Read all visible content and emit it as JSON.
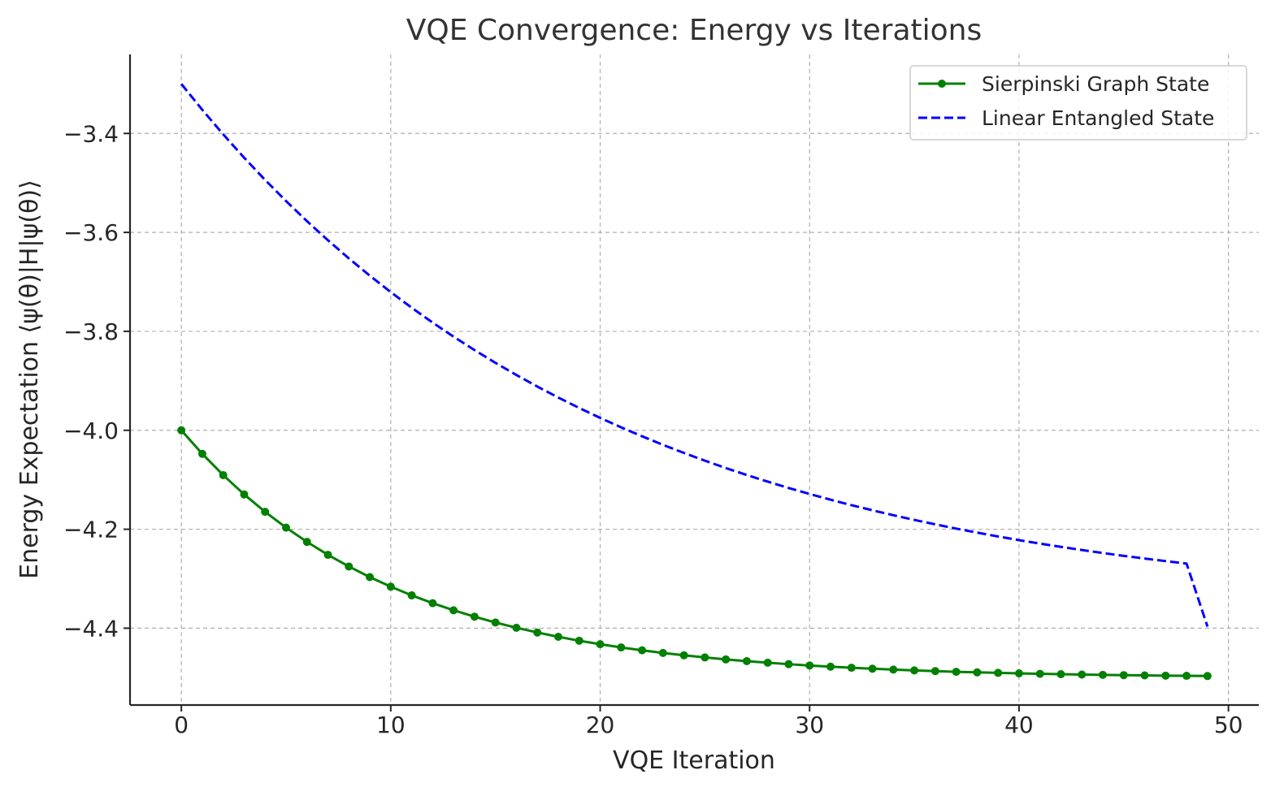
{
  "chart_data": {
    "type": "line",
    "title": "VQE Convergence: Energy vs Iterations",
    "xlabel": "VQE Iteration",
    "ylabel": "Energy Expectation ⟨ψ(θ)|H|ψ(θ)⟩",
    "xlim": [
      -2.45,
      51.45
    ],
    "ylim": [
      -4.5553,
      -3.2403
    ],
    "x_ticks": [
      0,
      10,
      20,
      30,
      40,
      50
    ],
    "y_ticks": [
      -3.4,
      -3.6,
      -3.8,
      -4.0,
      -4.2,
      -4.4
    ],
    "grid": true,
    "legend_position": "top-right",
    "x": [
      0,
      1,
      2,
      3,
      4,
      5,
      6,
      7,
      8,
      9,
      10,
      11,
      12,
      13,
      14,
      15,
      16,
      17,
      18,
      19,
      20,
      21,
      22,
      23,
      24,
      25,
      26,
      27,
      28,
      29,
      30,
      31,
      32,
      33,
      34,
      35,
      36,
      37,
      38,
      39,
      40,
      41,
      42,
      43,
      44,
      45,
      46,
      47,
      48,
      49
    ],
    "series": [
      {
        "name": "Sierpinski Graph State",
        "color": "#008000",
        "line_style": "solid",
        "marker": "circle",
        "values": [
          -4.0,
          -4.0476,
          -4.0906,
          -4.1296,
          -4.1648,
          -4.1967,
          -4.2256,
          -4.2517,
          -4.2753,
          -4.2967,
          -4.3161,
          -4.3336,
          -4.3494,
          -4.3638,
          -4.3767,
          -4.3885,
          -4.3991,
          -4.4087,
          -4.4174,
          -4.4253,
          -4.4324,
          -4.4389,
          -4.4447,
          -4.45,
          -4.4548,
          -4.4591,
          -4.4631,
          -4.4666,
          -4.4698,
          -4.4727,
          -4.4754,
          -4.4778,
          -4.4799,
          -4.4819,
          -4.4837,
          -4.4853,
          -4.4867,
          -4.4881,
          -4.4893,
          -4.4903,
          -4.4913,
          -4.4922,
          -4.493,
          -4.4937,
          -4.4943,
          -4.4949,
          -4.4954,
          -4.4959,
          -4.4963,
          -4.4967
        ]
      },
      {
        "name": "Linear Entangled State",
        "color": "#0000ff",
        "line_style": "dashed",
        "marker": "none",
        "values": [
          -3.3,
          -3.3522,
          -3.4019,
          -3.4491,
          -3.494,
          -3.5367,
          -3.5773,
          -3.6159,
          -3.6526,
          -3.6875,
          -3.7207,
          -3.7523,
          -3.7823,
          -3.8108,
          -3.8379,
          -3.8637,
          -3.8882,
          -3.9116,
          -3.9338,
          -3.9549,
          -3.9749,
          -3.994,
          -4.0121,
          -4.0294,
          -4.0458,
          -4.0614,
          -4.0763,
          -4.0904,
          -4.1038,
          -4.1166,
          -4.1287,
          -4.1403,
          -4.1513,
          -4.1617,
          -4.1717,
          -4.1811,
          -4.1901,
          -4.1987,
          -4.2068,
          -4.2146,
          -4.222,
          -4.229,
          -4.2356,
          -4.242,
          -4.248,
          -4.2538,
          -4.2592,
          -4.2644,
          -4.2694,
          -4.3968
        ]
      }
    ]
  }
}
